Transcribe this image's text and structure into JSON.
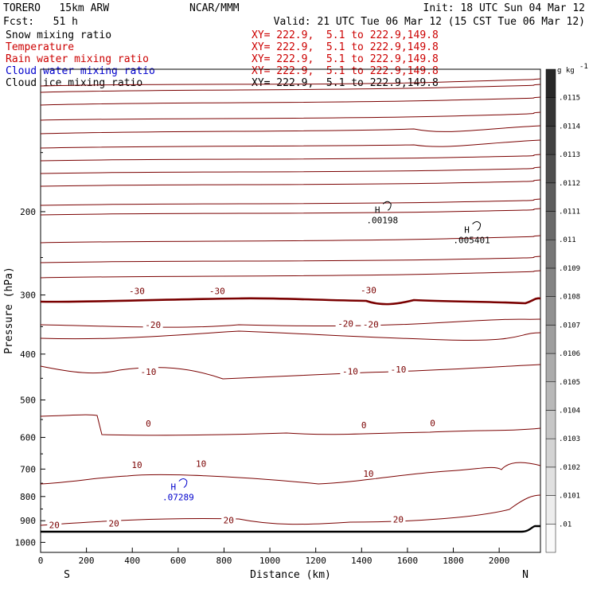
{
  "header": {
    "model": "TORERO   15km ARW",
    "center": "NCAR/MMM",
    "init": "Init: 18 UTC Sun 04 Mar 12",
    "fcst": "Fcst:   51 h",
    "valid": "Valid: 21 UTC Tue 06 Mar 12 (15 CST Tue 06 Mar 12)"
  },
  "fields": [
    {
      "name": "Snow mixing ratio",
      "xy": "XY= 222.9,  5.1 to 222.9,149.8",
      "color": "#000000"
    },
    {
      "name": "Temperature",
      "xy": "XY= 222.9,  5.1 to 222.9,149.8",
      "color": "#cc0000"
    },
    {
      "name": "Rain water mixing ratio",
      "xy": "XY= 222.9,  5.1 to 222.9,149.8",
      "color": "#cc0000"
    },
    {
      "name": "Cloud water mixing ratio",
      "xy": "XY= 222.9,  5.1 to 222.9,149.8",
      "color": "#0000cc"
    },
    {
      "name": "Cloud ice mixing ratio",
      "xy": "XY= 222.9,  5.1 to 222.9,149.8",
      "color": "#000000"
    }
  ],
  "chart_data": {
    "type": "line",
    "title": "",
    "xlabel": "Distance (km)",
    "ylabel": "Pressure (hPa)",
    "xlim": [
      0,
      2180
    ],
    "ylim": [
      1050,
      100
    ],
    "y_scale": "log",
    "x_ticks": [
      0,
      200,
      400,
      600,
      800,
      1000,
      1200,
      1400,
      1600,
      1800,
      2000
    ],
    "y_ticks": [
      200,
      300,
      400,
      500,
      600,
      700,
      800,
      900,
      1000
    ],
    "x_end_labels": {
      "left": "S",
      "right": "N"
    },
    "grid": false,
    "isotherm_color": "#7a0000",
    "temperature_contour_labels": [
      {
        "text": "-30",
        "x": 420,
        "p": 294
      },
      {
        "text": "-30",
        "x": 770,
        "p": 294
      },
      {
        "text": "-30",
        "x": 1430,
        "p": 293
      },
      {
        "text": "-20",
        "x": 490,
        "p": 347
      },
      {
        "text": "-20",
        "x": 1330,
        "p": 345
      },
      {
        "text": "-20",
        "x": 1440,
        "p": 346
      },
      {
        "text": "-10",
        "x": 470,
        "p": 436
      },
      {
        "text": "-10",
        "x": 1350,
        "p": 435
      },
      {
        "text": "-10",
        "x": 1560,
        "p": 431
      },
      {
        "text": "0",
        "x": 470,
        "p": 561
      },
      {
        "text": "0",
        "x": 1410,
        "p": 565
      },
      {
        "text": "0",
        "x": 1710,
        "p": 559
      },
      {
        "text": "10",
        "x": 420,
        "p": 686
      },
      {
        "text": "10",
        "x": 700,
        "p": 682
      },
      {
        "text": "10",
        "x": 1430,
        "p": 716
      },
      {
        "text": "20",
        "x": 60,
        "p": 918
      },
      {
        "text": "20",
        "x": 320,
        "p": 912
      },
      {
        "text": "20",
        "x": 820,
        "p": 898
      },
      {
        "text": "20",
        "x": 1560,
        "p": 894
      }
    ],
    "maxima": [
      {
        "label": "H",
        "value": ".00198",
        "x": 1490,
        "p": 205,
        "color": "#000000"
      },
      {
        "label": "H",
        "value": ".005401",
        "x": 1880,
        "p": 226,
        "color": "#000000"
      },
      {
        "label": "H",
        "value": ".07289",
        "x": 600,
        "p": 790,
        "color": "#0000cc"
      }
    ],
    "colorbar": {
      "unit_label": "g kg",
      "unit_exp": "-1",
      "labels": [
        ".01",
        ".0101",
        ".0102",
        ".0103",
        ".0104",
        ".0105",
        ".0106",
        ".0107",
        ".0108",
        ".0109",
        ".011",
        ".0111",
        ".0112",
        ".0113",
        ".0114",
        ".0115"
      ]
    }
  }
}
